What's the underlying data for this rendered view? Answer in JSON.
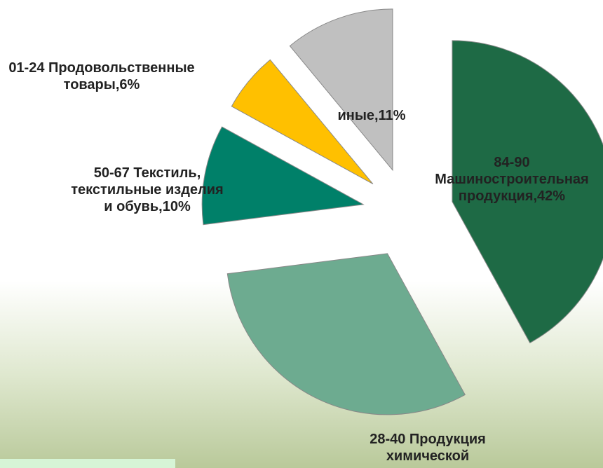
{
  "chart_data": {
    "type": "pie",
    "labels": [
      "84-90 Машиностроительная продукция,42%",
      "28-40 Продукция химической",
      "50-67 Текстиль, текстильные изделия и обувь,10%",
      "01-24 Продовольственные товары,6%",
      "иные,11%"
    ],
    "values": [
      42,
      31,
      10,
      6,
      11
    ],
    "colors": [
      "#1e6a45",
      "#6dab90",
      "#008069",
      "#ffc000",
      "#c0c0c0"
    ]
  }
}
